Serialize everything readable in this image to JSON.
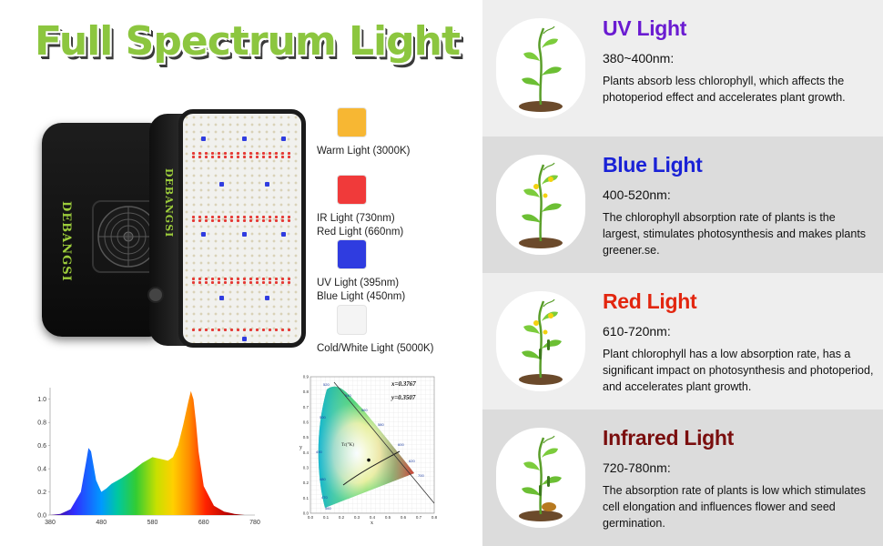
{
  "title": "Full Spectrum Light",
  "brand": "DEBANGSI",
  "legend": [
    {
      "lines": [
        "Warm Light (3000K)"
      ],
      "color": "#f7b733"
    },
    {
      "lines": [
        "IR Light (730nm)",
        "Red Light (660nm)"
      ],
      "color": "#f03a3a"
    },
    {
      "lines": [
        "UV Light (395nm)",
        "Blue Light (450nm)"
      ],
      "color": "#2f3ce0"
    },
    {
      "lines": [
        "Cold/White Light (5000K)"
      ],
      "color": "#f4f4f4"
    }
  ],
  "chart_data": [
    {
      "type": "area",
      "x": [
        380,
        400,
        420,
        440,
        450,
        455,
        460,
        470,
        480,
        490,
        500,
        520,
        540,
        560,
        580,
        600,
        610,
        620,
        630,
        640,
        650,
        655,
        660,
        665,
        670,
        680,
        700,
        720,
        740,
        760,
        780
      ],
      "y": [
        0.0,
        0.01,
        0.05,
        0.2,
        0.45,
        0.58,
        0.55,
        0.3,
        0.2,
        0.23,
        0.27,
        0.32,
        0.38,
        0.45,
        0.5,
        0.48,
        0.47,
        0.5,
        0.6,
        0.78,
        0.98,
        1.07,
        1.0,
        0.8,
        0.55,
        0.25,
        0.08,
        0.03,
        0.01,
        0.0,
        0.0
      ],
      "x_ticks": [
        "380",
        "480",
        "580",
        "680",
        "780"
      ],
      "y_ticks": [
        "0.0",
        "0.2",
        "0.4",
        "0.6",
        "0.8",
        "1.0"
      ],
      "xlim": [
        380,
        780
      ],
      "ylim": [
        0,
        1.1
      ]
    },
    {
      "type": "scatter",
      "annotations": [
        "x=0.3767",
        "y=0.3507"
      ],
      "x_ticks": [
        "0.0",
        "0.1",
        "0.2",
        "0.3",
        "0.4",
        "0.5",
        "0.6",
        "0.7",
        "0.8"
      ],
      "y_ticks": [
        "0.0",
        "0.1",
        "0.2",
        "0.3",
        "0.4",
        "0.5",
        "0.6",
        "0.7",
        "0.8",
        "0.9"
      ],
      "wavelength_labels": [
        "520",
        "540",
        "560",
        "580",
        "600",
        "620",
        "700",
        "500",
        "490",
        "480",
        "470",
        "460"
      ],
      "point": {
        "x": 0.3767,
        "y": 0.3507
      },
      "xlabel": "x",
      "ylabel": "y",
      "tc_label": "Tc(°K)"
    }
  ],
  "sections": [
    {
      "title": "UV Light",
      "color": "#6a1bd1",
      "range": "380~400nm:",
      "desc": "Plants absorb less chlorophyll, which affects the photoperiod effect and accelerates plant growth."
    },
    {
      "title": "Blue Light",
      "color": "#1a22d6",
      "range": "400-520nm:",
      "desc": "The chlorophyll absorption rate of plants is the largest, stimulates photosynthesis and makes plants greener.se."
    },
    {
      "title": "Red Light",
      "color": "#e2260f",
      "range": "610-720nm:",
      "desc": "Plant chlorophyll has a low absorption rate, has a significant impact on photosynthesis and photoperiod, and accelerates plant growth."
    },
    {
      "title": "Infrared Light",
      "color": "#7a0e0e",
      "range": "720-780nm:",
      "desc": "The absorption rate of plants is low which stimulates cell elongation and influences flower and seed germination."
    }
  ]
}
